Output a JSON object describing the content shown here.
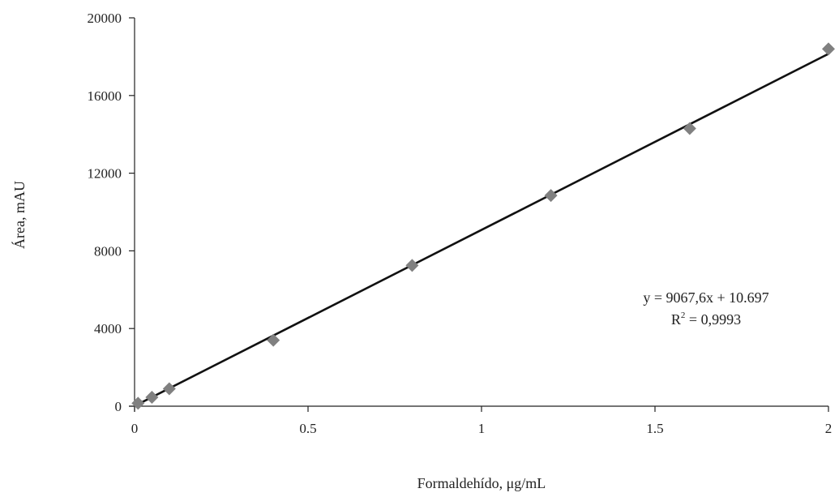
{
  "chart_data": {
    "type": "scatter",
    "title": "",
    "xlabel": "Formaldehído, μg/mL",
    "ylabel": "Área, mAU",
    "xlim": [
      0,
      2
    ],
    "ylim": [
      0,
      20000
    ],
    "x_ticks": [
      "0",
      "0.5",
      "1",
      "1.5",
      "2"
    ],
    "y_ticks": [
      "0",
      "4000",
      "8000",
      "12000",
      "16000",
      "20000"
    ],
    "grid": false,
    "legend": "none",
    "points": [
      {
        "x": 0.01,
        "y": 150
      },
      {
        "x": 0.05,
        "y": 460
      },
      {
        "x": 0.1,
        "y": 900
      },
      {
        "x": 0.4,
        "y": 3400
      },
      {
        "x": 0.8,
        "y": 7250
      },
      {
        "x": 1.2,
        "y": 10850
      },
      {
        "x": 1.6,
        "y": 14300
      },
      {
        "x": 2.0,
        "y": 18400
      }
    ],
    "trendline": {
      "slope": 9067.6,
      "intercept": 10.697,
      "equation_label": "y = 9067,6x + 10.697",
      "r2_prefix": "R",
      "r2_sup": "2",
      "r2_suffix": " = 0,9993"
    },
    "colors": {
      "marker": "#808080",
      "trendline": "#111111",
      "axis": "#222222"
    },
    "marker_shape": "diamond"
  }
}
